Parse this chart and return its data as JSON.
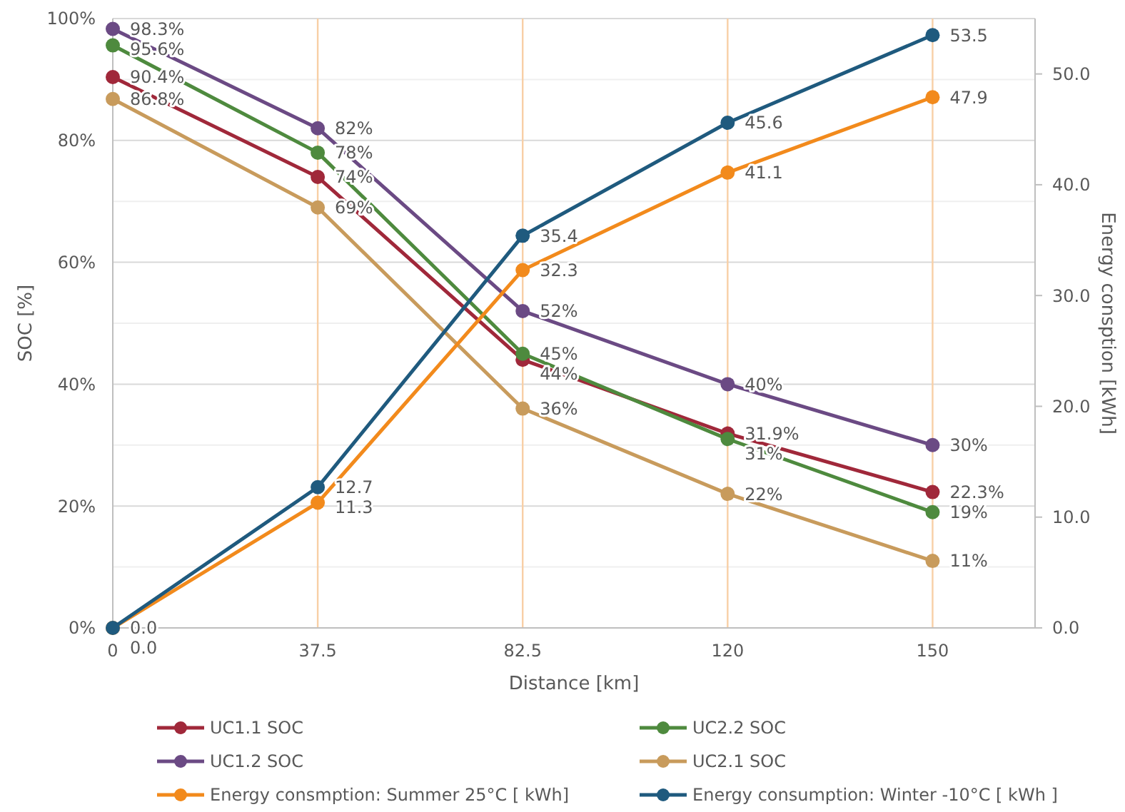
{
  "chart_data": {
    "type": "line",
    "xlabel": "Distance [km]",
    "ylabel": "SOC [%]",
    "y2label": "Energy consption [kWh]",
    "categories": [
      "0",
      "37.5",
      "82.5",
      "120",
      "150"
    ],
    "series": [
      {
        "name": "UC1.1 SOC",
        "color": "#a0283a",
        "values": [
          90.4,
          74,
          44,
          31.9,
          22.3
        ],
        "value_labels": [
          "90.4%",
          "74%",
          "44%",
          "31.9%",
          "22.3%"
        ]
      },
      {
        "name": "UC2.2 SOC",
        "color": "#4e8a3e",
        "values": [
          95.6,
          78,
          45,
          31,
          19
        ],
        "value_labels": [
          "95.6%",
          "78%",
          "45%",
          "31%",
          "19%"
        ]
      },
      {
        "name": "UC1.2 SOC",
        "color": "#6b4a84",
        "values": [
          98.3,
          82,
          52,
          40,
          30
        ],
        "value_labels": [
          "98.3%",
          "82%",
          "52%",
          "40%",
          "30%"
        ]
      },
      {
        "name": "UC2.1 SOC",
        "color": "#c89b5c",
        "values": [
          86.8,
          69,
          36,
          22,
          11
        ],
        "value_labels": [
          "86.8%",
          "69%",
          "36%",
          "22%",
          "11%"
        ]
      },
      {
        "name": "Energy consmption: Summer 25°C [ kWh]",
        "color": "#f28a1c",
        "axis": "y2",
        "values": [
          0,
          11.3,
          32.3,
          41.1,
          47.9
        ],
        "value_labels": [
          "0.0",
          "11.3",
          "32.3",
          "41.1",
          "47.9"
        ]
      },
      {
        "name": "Energy consumption: Winter -10°C [ kWh ]",
        "color": "#1f5a7e",
        "axis": "y2",
        "values": [
          0,
          12.7,
          35.4,
          45.6,
          53.5
        ],
        "value_labels": [
          "0.0",
          "12.7",
          "35.4",
          "45.6",
          "53.5"
        ]
      }
    ],
    "ylim": [
      0,
      100
    ],
    "yticks": [
      {
        "value": 0,
        "label": "0%"
      },
      {
        "value": 10,
        "label": null
      },
      {
        "value": 20,
        "label": "20%"
      },
      {
        "value": 30,
        "label": null
      },
      {
        "value": 40,
        "label": "40%"
      },
      {
        "value": 50,
        "label": null
      },
      {
        "value": 60,
        "label": "60%"
      },
      {
        "value": 70,
        "label": null
      },
      {
        "value": 80,
        "label": "80%"
      },
      {
        "value": 90,
        "label": null
      },
      {
        "value": 100,
        "label": "100%"
      }
    ],
    "y2lim": [
      0,
      55
    ],
    "y2ticks": [
      {
        "value": 0,
        "label": "0.0"
      },
      {
        "value": 10,
        "label": "10.0"
      },
      {
        "value": 20,
        "label": "20.0"
      },
      {
        "value": 30,
        "label": "30.0"
      },
      {
        "value": 40,
        "label": "40.0"
      },
      {
        "value": 50,
        "label": "50.0"
      }
    ],
    "grid": true,
    "legend": "bottom",
    "marker": "circle",
    "line_style": "solid"
  }
}
